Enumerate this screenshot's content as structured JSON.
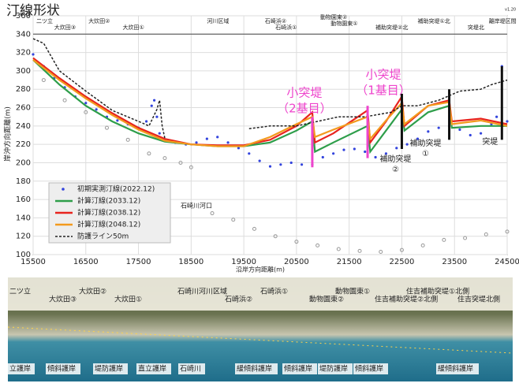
{
  "chart_data": {
    "type": "line",
    "title": "汀線形状",
    "version": "v1.20",
    "xlabel": "沿岸方向距離(m)",
    "ylabel": "岸沖方向距離(m)",
    "xlim": [
      15500,
      24500
    ],
    "xticks": [
      15500,
      16500,
      17500,
      18500,
      19500,
      20500,
      21500,
      22500,
      23500,
      24500
    ],
    "ylim": [
      100,
      360
    ],
    "yticks": [
      100,
      120,
      140,
      160,
      180,
      200,
      220,
      240,
      260,
      280,
      300,
      320,
      340,
      360
    ],
    "grid": true,
    "series": [
      {
        "name": "初期実測汀線(2022.12)",
        "color": "#3344dd",
        "style": "dots",
        "x": [
          15500,
          15700,
          15900,
          16100,
          16300,
          16500,
          16700,
          16900,
          17100,
          17300,
          17500,
          17650,
          17750,
          17800,
          17850,
          17900,
          18000,
          18200,
          18400,
          18600,
          18800,
          19000,
          19200,
          19400,
          19600,
          19800,
          20000,
          20200,
          20400,
          20600,
          20800,
          21000,
          21200,
          21400,
          21600,
          21800,
          22000,
          22200,
          22400,
          22600,
          22800,
          23000,
          23200,
          23400,
          23600,
          23800,
          24000,
          24200,
          24300,
          24400,
          24500
        ],
        "values": [
          318,
          305,
          292,
          282,
          272,
          265,
          258,
          250,
          246,
          242,
          238,
          245,
          262,
          268,
          250,
          232,
          225,
          222,
          220,
          222,
          226,
          228,
          222,
          216,
          210,
          202,
          196,
          198,
          200,
          198,
          198,
          206,
          210,
          214,
          215,
          212,
          206,
          210,
          216,
          220,
          226,
          234,
          238,
          240,
          236,
          230,
          232,
          242,
          250,
          305,
          245
        ]
      },
      {
        "name": "計算汀線(2033.12)",
        "color": "#2e9e4a",
        "style": "line",
        "x": [
          15500,
          16000,
          16500,
          17000,
          17500,
          18000,
          18500,
          19000,
          19500,
          20000,
          20500,
          20800,
          20850,
          21200,
          21850,
          21900,
          22200,
          22500,
          22550,
          23000,
          23400,
          23450,
          24000,
          24500
        ],
        "values": [
          312,
          285,
          262,
          245,
          232,
          223,
          220,
          218,
          218,
          222,
          235,
          245,
          212,
          222,
          240,
          212,
          235,
          258,
          235,
          255,
          262,
          238,
          240,
          240
        ]
      },
      {
        "name": "計算汀線(2038.12)",
        "color": "#e8231e",
        "style": "line",
        "x": [
          15500,
          16000,
          16500,
          17000,
          17500,
          18000,
          18500,
          19000,
          19500,
          20000,
          20500,
          20800,
          20850,
          21200,
          21850,
          21900,
          22200,
          22500,
          22550,
          23000,
          23400,
          23450,
          24000,
          24500
        ],
        "values": [
          314,
          292,
          272,
          254,
          238,
          226,
          220,
          219,
          219,
          225,
          240,
          255,
          222,
          232,
          257,
          222,
          245,
          272,
          240,
          262,
          268,
          245,
          248,
          242
        ]
      },
      {
        "name": "計算汀線(2048.12)",
        "color": "#f39a1e",
        "style": "line",
        "x": [
          15500,
          16000,
          16500,
          17000,
          17500,
          18000,
          18500,
          19000,
          19500,
          20000,
          20500,
          20800,
          20850,
          21200,
          21850,
          21900,
          22200,
          22500,
          22550,
          23000,
          23400,
          23450,
          24000,
          24500
        ],
        "values": [
          312,
          290,
          270,
          252,
          236,
          224,
          220,
          218,
          218,
          228,
          242,
          250,
          228,
          236,
          250,
          226,
          246,
          265,
          242,
          262,
          266,
          242,
          246,
          240
        ]
      },
      {
        "name": "防護ライン50m",
        "color": "#222222",
        "style": "dashed",
        "x": [
          15500,
          15700,
          16000,
          16500,
          17000,
          17500,
          17700,
          17850,
          17900,
          17950,
          18000,
          18500,
          19600,
          20000,
          20500,
          20900,
          21300,
          21800,
          22300,
          22500,
          22800,
          23200,
          23600,
          24000,
          24200,
          24500
        ],
        "values": [
          335,
          330,
          300,
          278,
          257,
          245,
          240,
          258,
          268,
          240,
          227,
          null,
          237,
          240,
          240,
          245,
          250,
          250,
          255,
          262,
          262,
          268,
          278,
          280,
          285,
          290
        ]
      }
    ],
    "profile_points": {
      "color": "#999999",
      "x": [
        15700,
        16100,
        16500,
        16900,
        17300,
        17700,
        18000,
        18300,
        18500,
        18900,
        19300,
        19700,
        20100,
        20500,
        20900,
        21300,
        21700,
        22100,
        22500,
        22900,
        23300,
        23700,
        24100,
        24500
      ],
      "values": [
        290,
        268,
        255,
        238,
        225,
        210,
        205,
        200,
        195,
        145,
        138,
        128,
        120,
        114,
        110,
        106,
        104,
        103,
        105,
        110,
        116,
        118,
        122,
        125
      ]
    },
    "structures": [
      {
        "label": [
          "小突堤",
          "（2基目）"
        ],
        "x": 20800,
        "y": [
          195,
          250
        ],
        "color": "#ee44cc"
      },
      {
        "label": [
          "小突堤",
          "（1基目）"
        ],
        "x": 21850,
        "y": [
          205,
          262
        ],
        "color": "#ee44cc"
      },
      {
        "label": [
          "補助突堤",
          "②"
        ],
        "x": 22500,
        "y": [
          215,
          275
        ],
        "color": "#111111"
      },
      {
        "label": [
          "補助突堤",
          "①"
        ],
        "x": 23400,
        "y": [
          225,
          280
        ],
        "color": "#111111"
      },
      {
        "label": [
          "突堤"
        ],
        "x": 24400,
        "y": [
          225,
          305
        ],
        "color": "#111111"
      }
    ],
    "river_mouth": "石崎川河口",
    "sections": [
      "二ツ立",
      "大炊田③",
      "大炊田②",
      "大炊田①",
      "河川区域",
      "石崎浜②",
      "石崎浜①",
      "動物園東②",
      "動物園東①",
      "補助突堤②北",
      "補助突堤①北",
      "突堤北",
      "離岸堤区間"
    ]
  },
  "photo": {
    "top_labels": [
      "二ツ立",
      "大炊田③",
      "大炊田②",
      "大炊田①",
      "石崎川河川区域",
      "石崎浜②",
      "石崎浜①",
      "動物園東②",
      "動物園東①",
      "住吉補助突堤②北側",
      "住吉補助突堤①北側",
      "住吉突堤北側"
    ],
    "bottom_labels": [
      "立護岸",
      "傾斜護岸",
      "堤防護岸",
      "直立護岸",
      "石崎川",
      "緩傾斜護岸",
      "傾斜護岸",
      "堤防護岸",
      "傾斜護岸",
      "緩傾斜護岸"
    ]
  }
}
